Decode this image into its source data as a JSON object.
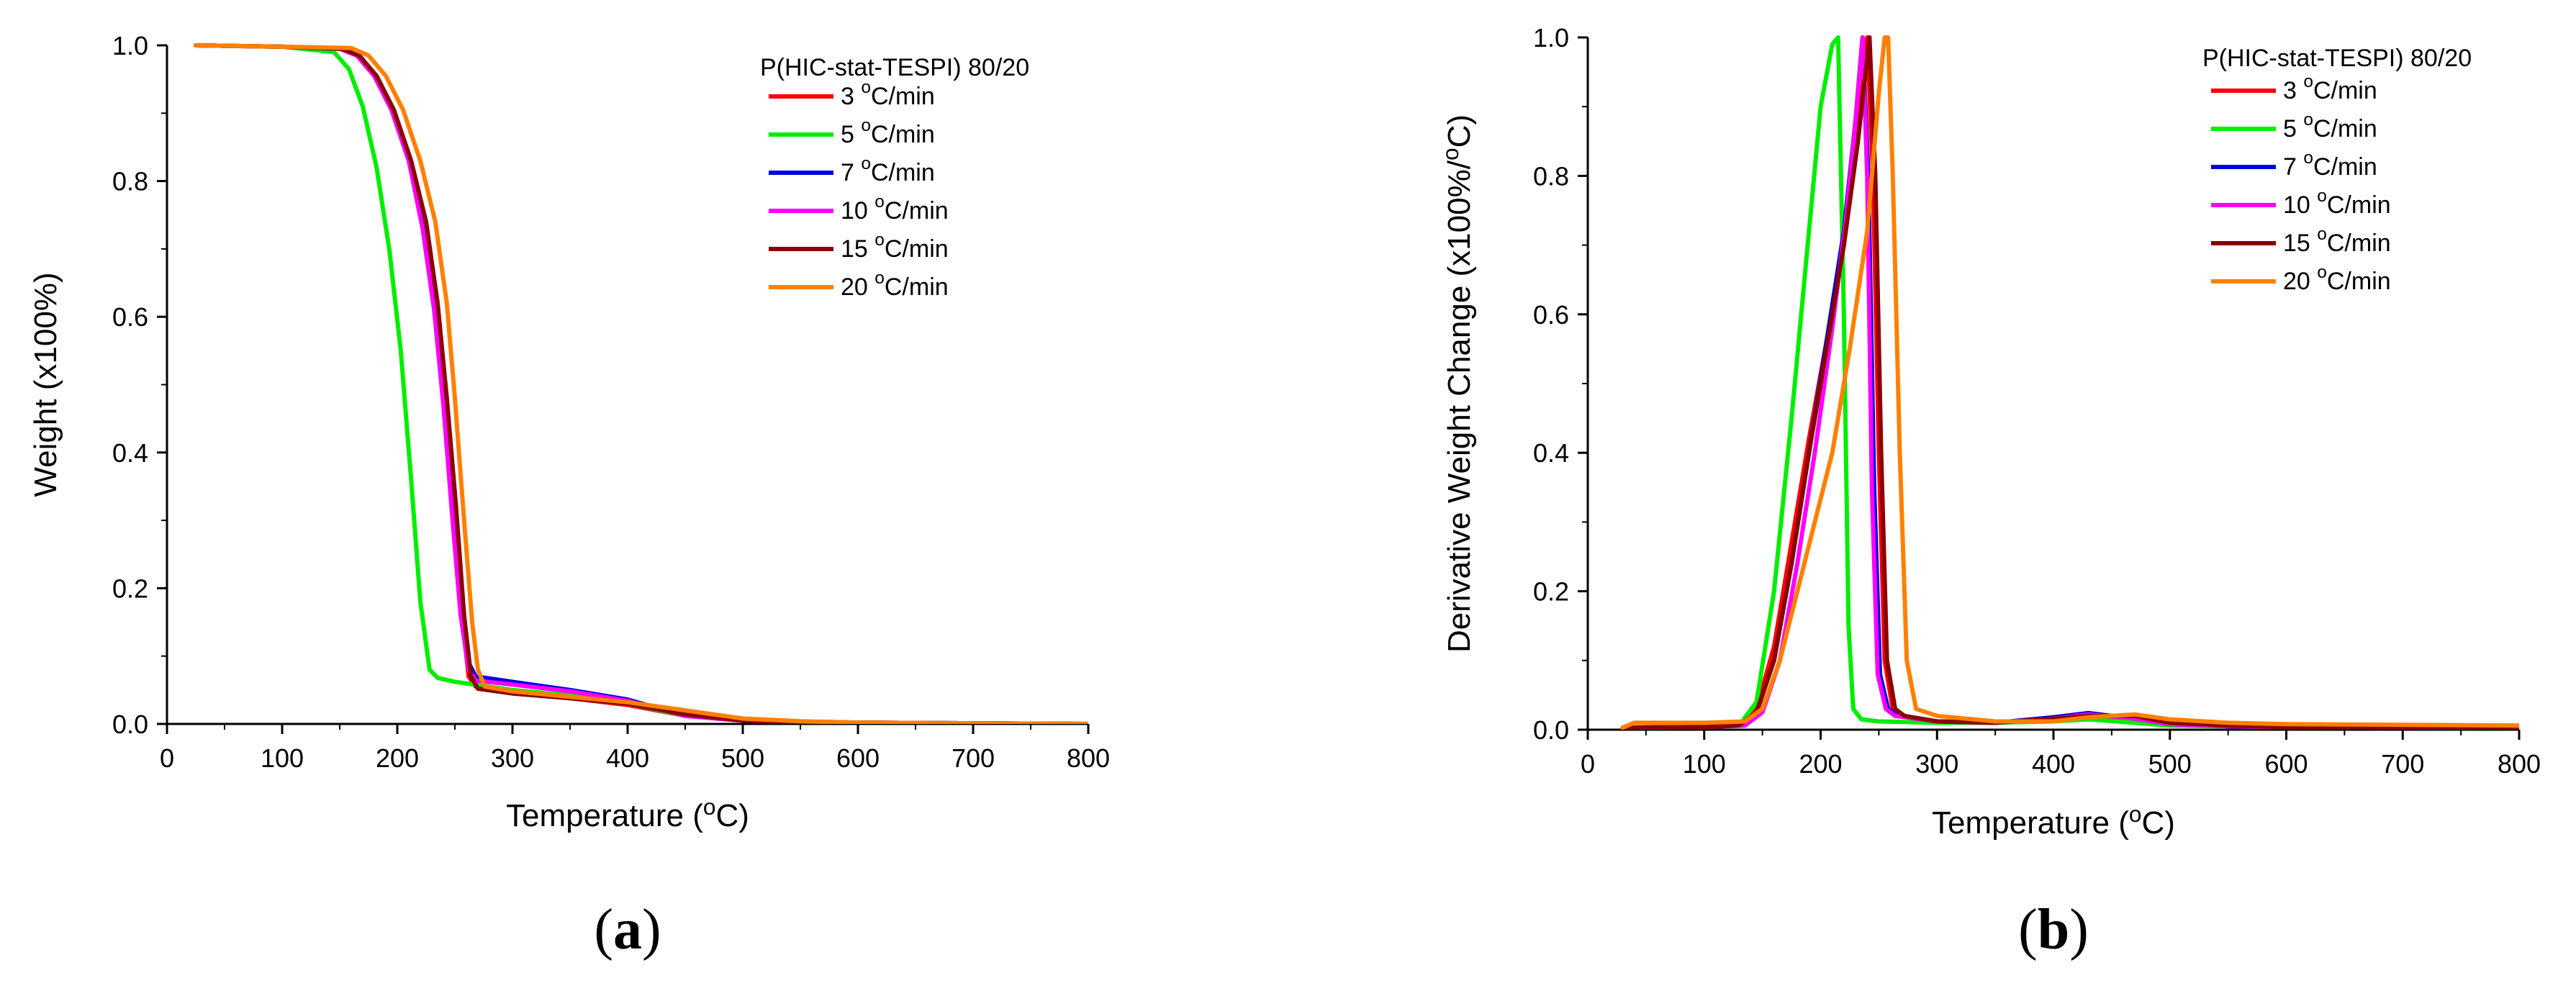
{
  "panels": [
    {
      "label_open": "(",
      "label_letter": "a",
      "label_close": ")"
    },
    {
      "label_open": "(",
      "label_letter": "b",
      "label_close": ")"
    }
  ],
  "chart_data": [
    {
      "type": "line",
      "title": "",
      "legend_title": "P(HIC-stat-TESPI) 80/20",
      "legend_position": "top-right",
      "xlabel": "Temperature (°C)",
      "ylabel": "Weight (x100%)",
      "xlim": [
        0,
        800
      ],
      "ylim": [
        0,
        1.0
      ],
      "xticks": [
        0,
        100,
        200,
        300,
        400,
        500,
        600,
        700,
        800
      ],
      "yticks": [
        0.0,
        0.2,
        0.4,
        0.6,
        0.8,
        1.0
      ],
      "xtick_labels": [
        "0",
        "100",
        "200",
        "300",
        "400",
        "500",
        "600",
        "700",
        "800"
      ],
      "ytick_labels": [
        "0.0",
        "0.2",
        "0.4",
        "0.6",
        "0.8",
        "1.0"
      ],
      "series": [
        {
          "name": "3 °C/min",
          "color": "#ff0000",
          "x": [
            25,
            100,
            150,
            165,
            180,
            195,
            210,
            222,
            232,
            240,
            248,
            256,
            262,
            268,
            300,
            350,
            400,
            450,
            500,
            550,
            600,
            800
          ],
          "y": [
            1.0,
            0.998,
            0.995,
            0.985,
            0.955,
            0.905,
            0.83,
            0.74,
            0.62,
            0.48,
            0.32,
            0.16,
            0.07,
            0.055,
            0.045,
            0.038,
            0.028,
            0.012,
            0.005,
            0.003,
            0.002,
            0.0
          ]
        },
        {
          "name": "5 °C/min",
          "color": "#00ee00",
          "x": [
            25,
            100,
            145,
            158,
            170,
            182,
            193,
            203,
            212,
            220,
            228,
            235,
            250,
            300,
            350,
            400,
            450,
            500,
            550,
            600,
            800
          ],
          "y": [
            1.0,
            0.998,
            0.99,
            0.965,
            0.91,
            0.82,
            0.7,
            0.55,
            0.36,
            0.18,
            0.08,
            0.068,
            0.062,
            0.05,
            0.042,
            0.03,
            0.012,
            0.005,
            0.003,
            0.002,
            0.0
          ]
        },
        {
          "name": "7 °C/min",
          "color": "#0000dd",
          "x": [
            25,
            100,
            150,
            165,
            180,
            195,
            210,
            222,
            232,
            240,
            248,
            256,
            262,
            268,
            300,
            350,
            400,
            450,
            500,
            550,
            600,
            800
          ],
          "y": [
            1.0,
            0.998,
            0.995,
            0.985,
            0.955,
            0.905,
            0.83,
            0.74,
            0.62,
            0.48,
            0.32,
            0.17,
            0.09,
            0.07,
            0.062,
            0.05,
            0.036,
            0.012,
            0.005,
            0.003,
            0.002,
            0.0
          ]
        },
        {
          "name": "10 °C/min",
          "color": "#ff00ff",
          "x": [
            25,
            100,
            150,
            165,
            180,
            195,
            210,
            222,
            232,
            240,
            248,
            255,
            262,
            268,
            300,
            350,
            400,
            450,
            500,
            550,
            600,
            800
          ],
          "y": [
            1.0,
            0.998,
            0.995,
            0.985,
            0.955,
            0.905,
            0.83,
            0.73,
            0.61,
            0.47,
            0.3,
            0.16,
            0.08,
            0.064,
            0.058,
            0.048,
            0.034,
            0.012,
            0.005,
            0.003,
            0.002,
            0.0
          ]
        },
        {
          "name": "15 °C/min",
          "color": "#8b0000",
          "x": [
            25,
            100,
            152,
            167,
            182,
            197,
            212,
            225,
            235,
            243,
            251,
            258,
            264,
            270,
            300,
            350,
            400,
            450,
            500,
            550,
            600,
            800
          ],
          "y": [
            1.0,
            0.998,
            0.995,
            0.985,
            0.955,
            0.905,
            0.83,
            0.74,
            0.62,
            0.48,
            0.32,
            0.16,
            0.07,
            0.052,
            0.045,
            0.038,
            0.03,
            0.014,
            0.005,
            0.003,
            0.002,
            0.0
          ]
        },
        {
          "name": "20 °C/min",
          "color": "#ff8000",
          "x": [
            25,
            100,
            160,
            175,
            190,
            205,
            220,
            233,
            243,
            250,
            258,
            265,
            270,
            276,
            300,
            350,
            400,
            450,
            500,
            550,
            600,
            800
          ],
          "y": [
            1.0,
            0.998,
            0.996,
            0.985,
            0.955,
            0.905,
            0.83,
            0.74,
            0.62,
            0.48,
            0.3,
            0.15,
            0.08,
            0.055,
            0.048,
            0.04,
            0.032,
            0.02,
            0.008,
            0.004,
            0.002,
            0.0
          ]
        }
      ]
    },
    {
      "type": "line",
      "title": "",
      "legend_title": "P(HIC-stat-TESPI) 80/20",
      "legend_position": "top-right",
      "xlabel": "Temperature (°C)",
      "ylabel": "Derivative Weight Change (x100%/°C)",
      "xlim": [
        0,
        800
      ],
      "ylim": [
        0,
        1.0
      ],
      "xticks": [
        0,
        100,
        200,
        300,
        400,
        500,
        600,
        700,
        800
      ],
      "yticks": [
        0.0,
        0.2,
        0.4,
        0.6,
        0.8,
        1.0
      ],
      "xtick_labels": [
        "0",
        "100",
        "200",
        "300",
        "400",
        "500",
        "600",
        "700",
        "800"
      ],
      "ytick_labels": [
        "0.0",
        "0.2",
        "0.4",
        "0.6",
        "0.8",
        "1.0"
      ],
      "series": [
        {
          "name": "3 °C/min",
          "color": "#ff0000",
          "x": [
            30,
            100,
            130,
            145,
            160,
            175,
            190,
            205,
            220,
            232,
            240,
            245,
            250,
            255,
            262,
            270,
            300,
            350,
            400,
            430,
            470,
            500,
            550,
            600,
            800
          ],
          "y": [
            0.003,
            0.004,
            0.006,
            0.03,
            0.12,
            0.27,
            0.42,
            0.56,
            0.7,
            0.85,
            1.0,
            0.8,
            0.4,
            0.1,
            0.03,
            0.02,
            0.012,
            0.01,
            0.015,
            0.02,
            0.015,
            0.008,
            0.005,
            0.004,
            0.003
          ]
        },
        {
          "name": "5 °C/min",
          "color": "#00ee00",
          "x": [
            30,
            100,
            130,
            145,
            160,
            175,
            190,
            200,
            210,
            215,
            220,
            224,
            228,
            235,
            250,
            300,
            350,
            400,
            430,
            470,
            500,
            550,
            600,
            800
          ],
          "y": [
            0.003,
            0.004,
            0.006,
            0.04,
            0.2,
            0.45,
            0.72,
            0.9,
            0.99,
            1.0,
            0.6,
            0.15,
            0.03,
            0.015,
            0.012,
            0.01,
            0.01,
            0.012,
            0.015,
            0.01,
            0.006,
            0.005,
            0.004,
            0.003
          ]
        },
        {
          "name": "7 °C/min",
          "color": "#0000dd",
          "x": [
            30,
            100,
            130,
            145,
            160,
            175,
            190,
            205,
            220,
            230,
            236,
            241,
            246,
            251,
            258,
            266,
            300,
            350,
            400,
            430,
            470,
            500,
            550,
            600,
            800
          ],
          "y": [
            0.003,
            0.004,
            0.006,
            0.025,
            0.1,
            0.24,
            0.4,
            0.56,
            0.72,
            0.88,
            1.0,
            0.8,
            0.35,
            0.08,
            0.03,
            0.02,
            0.012,
            0.01,
            0.018,
            0.024,
            0.016,
            0.008,
            0.005,
            0.004,
            0.003
          ]
        },
        {
          "name": "10 °C/min",
          "color": "#ff00ff",
          "x": [
            30,
            100,
            135,
            150,
            165,
            180,
            195,
            210,
            222,
            230,
            236,
            240,
            244,
            249,
            256,
            264,
            300,
            350,
            400,
            430,
            470,
            500,
            550,
            600,
            800
          ],
          "y": [
            0.003,
            0.004,
            0.006,
            0.025,
            0.1,
            0.24,
            0.4,
            0.58,
            0.74,
            0.88,
            1.0,
            0.8,
            0.35,
            0.08,
            0.03,
            0.02,
            0.012,
            0.01,
            0.016,
            0.022,
            0.016,
            0.008,
            0.005,
            0.004,
            0.003
          ]
        },
        {
          "name": "15 °C/min",
          "color": "#8b0000",
          "x": [
            30,
            100,
            130,
            145,
            160,
            175,
            190,
            205,
            220,
            232,
            242,
            247,
            252,
            257,
            264,
            272,
            300,
            350,
            400,
            430,
            470,
            500,
            550,
            600,
            800
          ],
          "y": [
            0.003,
            0.004,
            0.006,
            0.025,
            0.1,
            0.24,
            0.4,
            0.55,
            0.7,
            0.85,
            1.0,
            0.8,
            0.4,
            0.1,
            0.03,
            0.02,
            0.012,
            0.01,
            0.016,
            0.02,
            0.02,
            0.01,
            0.006,
            0.004,
            0.003
          ]
        },
        {
          "name": "20 °C/min",
          "color": "#ff8000",
          "x": [
            30,
            40,
            100,
            135,
            150,
            165,
            180,
            195,
            210,
            225,
            240,
            250,
            255,
            258,
            262,
            268,
            274,
            282,
            300,
            350,
            400,
            430,
            470,
            500,
            550,
            600,
            800
          ],
          "y": [
            0.003,
            0.01,
            0.01,
            0.012,
            0.03,
            0.1,
            0.2,
            0.3,
            0.4,
            0.55,
            0.72,
            0.92,
            1.0,
            1.0,
            0.8,
            0.4,
            0.1,
            0.03,
            0.02,
            0.012,
            0.012,
            0.018,
            0.022,
            0.015,
            0.01,
            0.008,
            0.006
          ]
        }
      ]
    }
  ]
}
